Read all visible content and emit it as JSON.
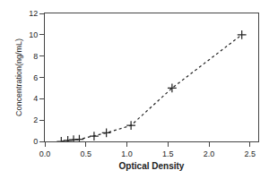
{
  "chart_data": {
    "type": "line",
    "xlabel": "Optical Density",
    "ylabel": "Concentration(ng/mL)",
    "x": [
      0.2,
      0.28,
      0.35,
      0.42,
      0.6,
      0.75,
      1.05,
      1.55,
      2.4
    ],
    "values": [
      0.0,
      0.1,
      0.15,
      0.2,
      0.5,
      0.8,
      1.5,
      5.0,
      10.0
    ],
    "color": "#222222",
    "marker": "+",
    "line_style": "dotted",
    "xlim": [
      0,
      2.6
    ],
    "ylim": [
      0,
      12
    ],
    "xticks": [
      {
        "value": 0,
        "label": "0.0"
      },
      0.5,
      {
        "value": 1.0,
        "label": "1.0"
      },
      1.5,
      {
        "value": 2.0,
        "label": "2.0"
      },
      2.5
    ],
    "yticks": [
      0,
      2,
      4,
      6,
      8,
      10,
      12
    ],
    "grid": false
  }
}
